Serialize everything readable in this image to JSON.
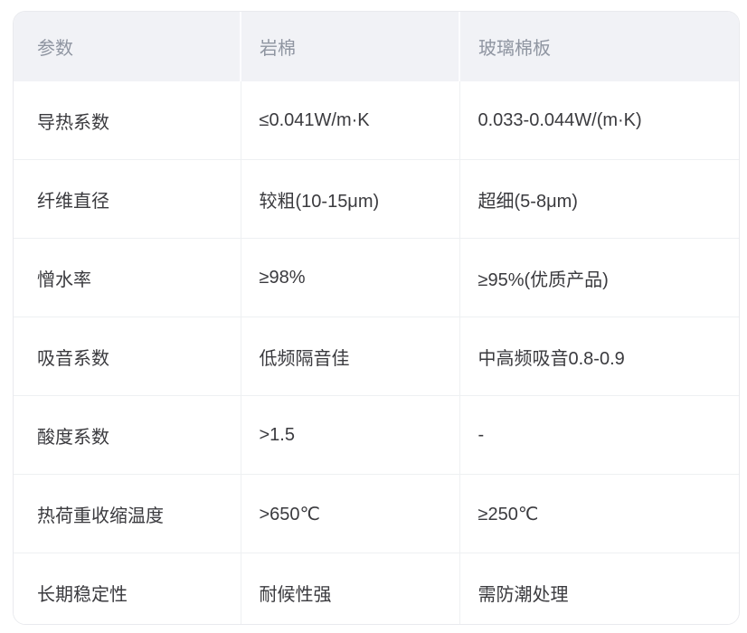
{
  "table": {
    "header": {
      "param": "参数",
      "rock_wool": "岩棉",
      "glass_wool": "玻璃棉板"
    },
    "rows": [
      {
        "param": "导热系数",
        "rock_wool": "≤0.041W/m·K",
        "glass_wool": "0.033-0.044W/(m·K)"
      },
      {
        "param": "纤维直径",
        "rock_wool": "较粗(10-15μm)",
        "glass_wool": "超细(5-8μm)"
      },
      {
        "param": "憎水率",
        "rock_wool": "≥98%",
        "glass_wool": "≥95%(优质产品)"
      },
      {
        "param": "吸音系数",
        "rock_wool": "低频隔音佳",
        "glass_wool": "中高频吸音0.8-0.9"
      },
      {
        "param": "酸度系数",
        "rock_wool": ">1.5",
        "glass_wool": "-"
      },
      {
        "param": "热荷重收缩温度",
        "rock_wool": ">650℃",
        "glass_wool": "≥250℃"
      },
      {
        "param": "长期稳定性",
        "rock_wool": "耐候性强",
        "glass_wool": "需防潮处理"
      }
    ],
    "colors": {
      "header_bg": "#f1f2f6",
      "header_text": "#8f95a1",
      "body_text": "#3a3a3e",
      "divider": "#eef0f2",
      "card_border": "#e9eaee",
      "body_bg": "#ffffff"
    }
  },
  "chart_data": {
    "type": "table",
    "columns": [
      "参数",
      "岩棉",
      "玻璃棉板"
    ],
    "rows": [
      [
        "导热系数",
        "≤0.041W/m·K",
        "0.033-0.044W/(m·K)"
      ],
      [
        "纤维直径",
        "较粗(10-15μm)",
        "超细(5-8μm)"
      ],
      [
        "憎水率",
        "≥98%",
        "≥95%(优质产品)"
      ],
      [
        "吸音系数",
        "低频隔音佳",
        "中高频吸音0.8-0.9"
      ],
      [
        "酸度系数",
        ">1.5",
        "-"
      ],
      [
        "热荷重收缩温度",
        ">650℃",
        "≥250℃"
      ],
      [
        "长期稳定性",
        "耐候性强",
        "需防潮处理"
      ]
    ]
  }
}
